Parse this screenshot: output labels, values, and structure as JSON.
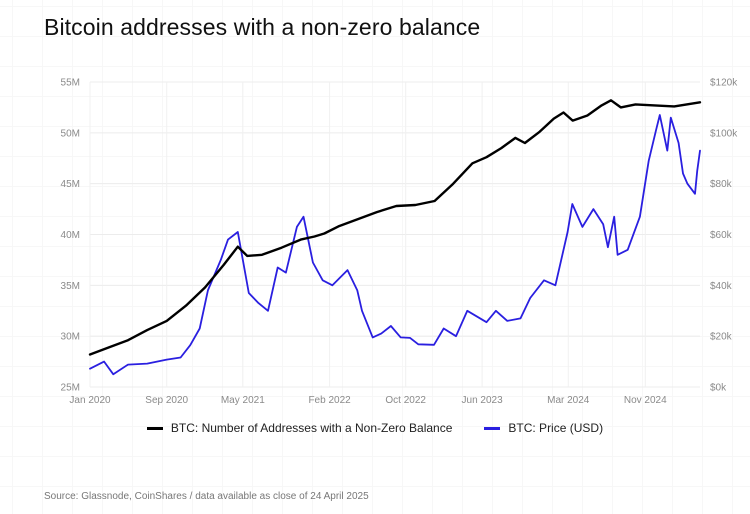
{
  "title": "Bitcoin addresses with a non-zero balance",
  "source": "Source: Glassnode, CoinShares / data available as close of 24 April 2025",
  "chart_data": {
    "type": "line",
    "title": "Bitcoin addresses with a non-zero balance",
    "x_ticks": [
      "Jan 2020",
      "Sep 2020",
      "May 2021",
      "Feb 2022",
      "Oct 2022",
      "Jun 2023",
      "Mar 2024",
      "Nov 2024"
    ],
    "y_left_ticks": [
      "25M",
      "30M",
      "35M",
      "40M",
      "45M",
      "50M",
      "55M"
    ],
    "y_left_lim": [
      25,
      55
    ],
    "y_left_unit": "millions",
    "y_right_ticks": [
      "$0k",
      "$20k",
      "$40k",
      "$60k",
      "$80k",
      "$100k",
      "$120k"
    ],
    "y_right_lim": [
      0,
      120
    ],
    "y_right_unit": "thousand USD",
    "grid": true,
    "legend_position": "bottom",
    "series": [
      {
        "name": "BTC: Number of Addresses with a Non-Zero Balance",
        "axis": "left",
        "color": "#000000",
        "points": [
          [
            "2020-01-01",
            28.2
          ],
          [
            "2020-03-01",
            28.9
          ],
          [
            "2020-05-01",
            29.6
          ],
          [
            "2020-07-01",
            30.6
          ],
          [
            "2020-09-01",
            31.5
          ],
          [
            "2020-11-01",
            33.0
          ],
          [
            "2021-01-01",
            34.8
          ],
          [
            "2021-03-01",
            37.0
          ],
          [
            "2021-04-15",
            38.8
          ],
          [
            "2021-05-15",
            37.9
          ],
          [
            "2021-07-01",
            38.0
          ],
          [
            "2021-09-01",
            38.7
          ],
          [
            "2021-11-01",
            39.5
          ],
          [
            "2021-12-15",
            39.8
          ],
          [
            "2022-01-15",
            40.1
          ],
          [
            "2022-03-01",
            40.8
          ],
          [
            "2022-05-01",
            41.5
          ],
          [
            "2022-07-01",
            42.2
          ],
          [
            "2022-09-01",
            42.8
          ],
          [
            "2022-11-01",
            42.9
          ],
          [
            "2023-01-01",
            43.3
          ],
          [
            "2023-03-01",
            45.0
          ],
          [
            "2023-05-01",
            47.0
          ],
          [
            "2023-06-15",
            47.6
          ],
          [
            "2023-08-01",
            48.5
          ],
          [
            "2023-09-15",
            49.5
          ],
          [
            "2023-10-15",
            49.0
          ],
          [
            "2023-12-01",
            50.1
          ],
          [
            "2024-01-15",
            51.4
          ],
          [
            "2024-02-15",
            52.0
          ],
          [
            "2024-03-15",
            51.2
          ],
          [
            "2024-05-01",
            51.7
          ],
          [
            "2024-06-15",
            52.7
          ],
          [
            "2024-07-15",
            53.2
          ],
          [
            "2024-08-15",
            52.5
          ],
          [
            "2024-10-01",
            52.8
          ],
          [
            "2024-12-01",
            52.7
          ],
          [
            "2025-02-01",
            52.6
          ],
          [
            "2025-04-24",
            53.0
          ]
        ]
      },
      {
        "name": "BTC: Price (USD)",
        "axis": "right",
        "color": "#2a1fe0",
        "points": [
          [
            "2020-01-01",
            7.2
          ],
          [
            "2020-02-15",
            10.0
          ],
          [
            "2020-03-15",
            5.0
          ],
          [
            "2020-05-01",
            8.8
          ],
          [
            "2020-07-01",
            9.2
          ],
          [
            "2020-09-01",
            10.8
          ],
          [
            "2020-10-15",
            11.6
          ],
          [
            "2020-11-15",
            16.5
          ],
          [
            "2020-12-15",
            23.0
          ],
          [
            "2021-01-10",
            38.0
          ],
          [
            "2021-02-20",
            50.0
          ],
          [
            "2021-03-15",
            58.0
          ],
          [
            "2021-04-15",
            61.0
          ],
          [
            "2021-05-20",
            37.0
          ],
          [
            "2021-06-20",
            33.0
          ],
          [
            "2021-07-20",
            30.0
          ],
          [
            "2021-08-20",
            47.0
          ],
          [
            "2021-09-15",
            45.0
          ],
          [
            "2021-10-20",
            63.0
          ],
          [
            "2021-11-10",
            67.0
          ],
          [
            "2021-12-10",
            49.0
          ],
          [
            "2022-01-10",
            42.0
          ],
          [
            "2022-02-10",
            40.0
          ],
          [
            "2022-03-30",
            46.0
          ],
          [
            "2022-04-30",
            38.0
          ],
          [
            "2022-05-15",
            30.0
          ],
          [
            "2022-06-18",
            19.5
          ],
          [
            "2022-07-15",
            21.0
          ],
          [
            "2022-08-15",
            24.0
          ],
          [
            "2022-09-15",
            19.5
          ],
          [
            "2022-10-15",
            19.3
          ],
          [
            "2022-11-10",
            16.8
          ],
          [
            "2022-12-30",
            16.6
          ],
          [
            "2023-01-30",
            23.0
          ],
          [
            "2023-03-10",
            20.0
          ],
          [
            "2023-04-15",
            30.0
          ],
          [
            "2023-06-15",
            25.5
          ],
          [
            "2023-07-15",
            30.0
          ],
          [
            "2023-08-20",
            26.0
          ],
          [
            "2023-10-01",
            27.0
          ],
          [
            "2023-11-01",
            35.0
          ],
          [
            "2023-12-15",
            42.0
          ],
          [
            "2024-01-20",
            40.0
          ],
          [
            "2024-02-28",
            61.0
          ],
          [
            "2024-03-14",
            72.0
          ],
          [
            "2024-04-15",
            63.0
          ],
          [
            "2024-05-20",
            70.0
          ],
          [
            "2024-06-20",
            64.0
          ],
          [
            "2024-07-05",
            55.0
          ],
          [
            "2024-07-25",
            67.0
          ],
          [
            "2024-08-05",
            52.0
          ],
          [
            "2024-09-06",
            54.0
          ],
          [
            "2024-10-15",
            67.0
          ],
          [
            "2024-11-12",
            89.0
          ],
          [
            "2024-12-05",
            101.0
          ],
          [
            "2024-12-17",
            107.0
          ],
          [
            "2025-01-10",
            93.0
          ],
          [
            "2025-01-21",
            106.0
          ],
          [
            "2025-02-15",
            96.0
          ],
          [
            "2025-03-01",
            84.0
          ],
          [
            "2025-03-15",
            80.0
          ],
          [
            "2025-04-08",
            76.0
          ],
          [
            "2025-04-15",
            85.0
          ],
          [
            "2025-04-24",
            93.0
          ]
        ]
      }
    ]
  }
}
